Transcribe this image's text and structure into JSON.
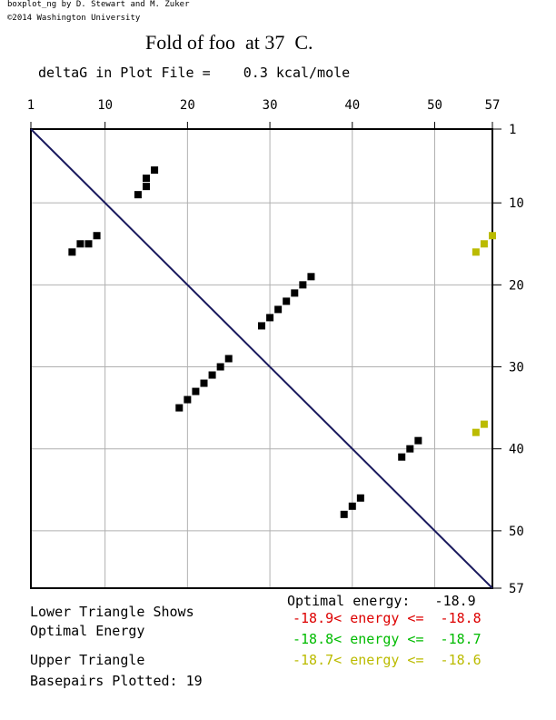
{
  "header": {
    "credit_line1": "boxplot_ng by D. Stewart and M. Zuker",
    "credit_line2": "©2014 Washington University",
    "title": "Fold of foo  at 37  C.",
    "subtitle": "deltaG in Plot File =    0.3 kcal/mole"
  },
  "legend": {
    "lower_line1": "Lower Triangle Shows",
    "lower_line2": "Optimal Energy",
    "upper_line1": "Upper Triangle",
    "basepairs": "Basepairs Plotted: 19",
    "optimal": "Optimal energy:   -18.9",
    "range_red": "-18.9< energy <=  -18.8",
    "range_green": "-18.8< energy <=  -18.7",
    "range_yellow": "-18.7< energy <=  -18.6"
  },
  "colors": {
    "black": "#000000",
    "red": "#dd0000",
    "green": "#00bb00",
    "yellow": "#bbbb00",
    "grid": "#b0b0b0",
    "diagonal": "#1a1a5e"
  },
  "chart_data": {
    "type": "heatmap",
    "title": "Fold of foo  at 37  C.",
    "sequence_length": 57,
    "xlim": [
      1,
      57
    ],
    "ylim": [
      1,
      57
    ],
    "grid": true,
    "top_ticks": [
      "1",
      "10",
      "20",
      "30",
      "40",
      "50",
      "57"
    ],
    "right_ticks": [
      "1",
      "10",
      "20",
      "30",
      "40",
      "50",
      "57"
    ],
    "lower_triangle": {
      "name": "Optimal Energy",
      "points": [
        [
          6,
          16
        ],
        [
          7,
          15
        ],
        [
          8,
          15
        ],
        [
          9,
          14
        ],
        [
          14,
          9
        ],
        [
          15,
          8
        ],
        [
          15,
          7
        ],
        [
          16,
          6
        ],
        [
          19,
          35
        ],
        [
          20,
          34
        ],
        [
          21,
          33
        ],
        [
          22,
          32
        ],
        [
          23,
          31
        ],
        [
          24,
          30
        ],
        [
          25,
          29
        ],
        [
          29,
          25
        ],
        [
          30,
          24
        ],
        [
          31,
          23
        ],
        [
          32,
          22
        ],
        [
          33,
          21
        ],
        [
          34,
          20
        ],
        [
          35,
          19
        ],
        [
          39,
          48
        ],
        [
          40,
          47
        ],
        [
          41,
          46
        ],
        [
          46,
          41
        ],
        [
          47,
          40
        ],
        [
          48,
          39
        ]
      ]
    },
    "upper_triangle": {
      "points_yellow": [
        [
          55,
          16
        ],
        [
          56,
          15
        ],
        [
          57,
          14
        ],
        [
          55,
          38
        ],
        [
          56,
          37
        ]
      ]
    }
  }
}
